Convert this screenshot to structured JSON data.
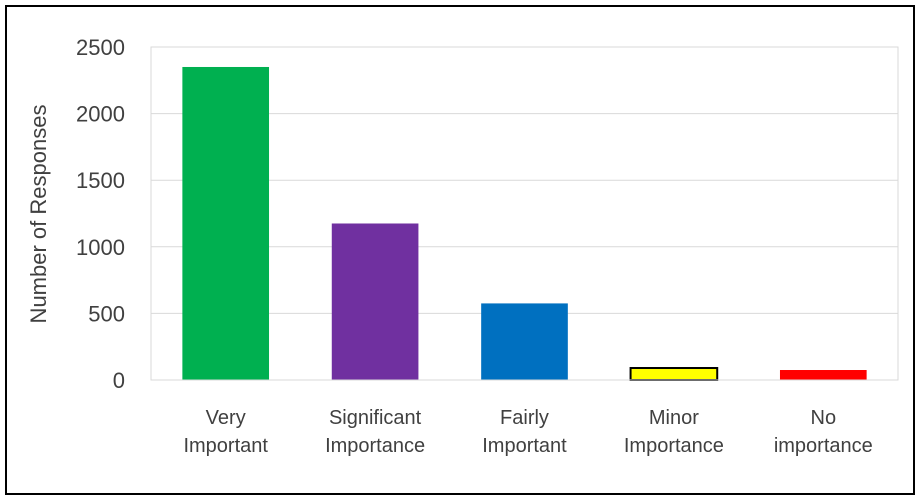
{
  "chart_data": {
    "type": "bar",
    "categories": [
      [
        "Very",
        "Important"
      ],
      [
        "Significant",
        "Importance"
      ],
      [
        "Fairly",
        "Important"
      ],
      [
        "Minor",
        "Importance"
      ],
      [
        "No",
        "importance"
      ]
    ],
    "values": [
      2350,
      1175,
      575,
      90,
      75
    ],
    "colors": [
      "#00b050",
      "#7030a0",
      "#0070c0",
      "#ffff00",
      "#ff0000"
    ],
    "outlined_categories": [
      3
    ],
    "ylabel": "Number of Responses",
    "ylim": [
      0,
      2500
    ],
    "yticks": [
      0,
      500,
      1000,
      1500,
      2000,
      2500
    ],
    "grid": true
  }
}
